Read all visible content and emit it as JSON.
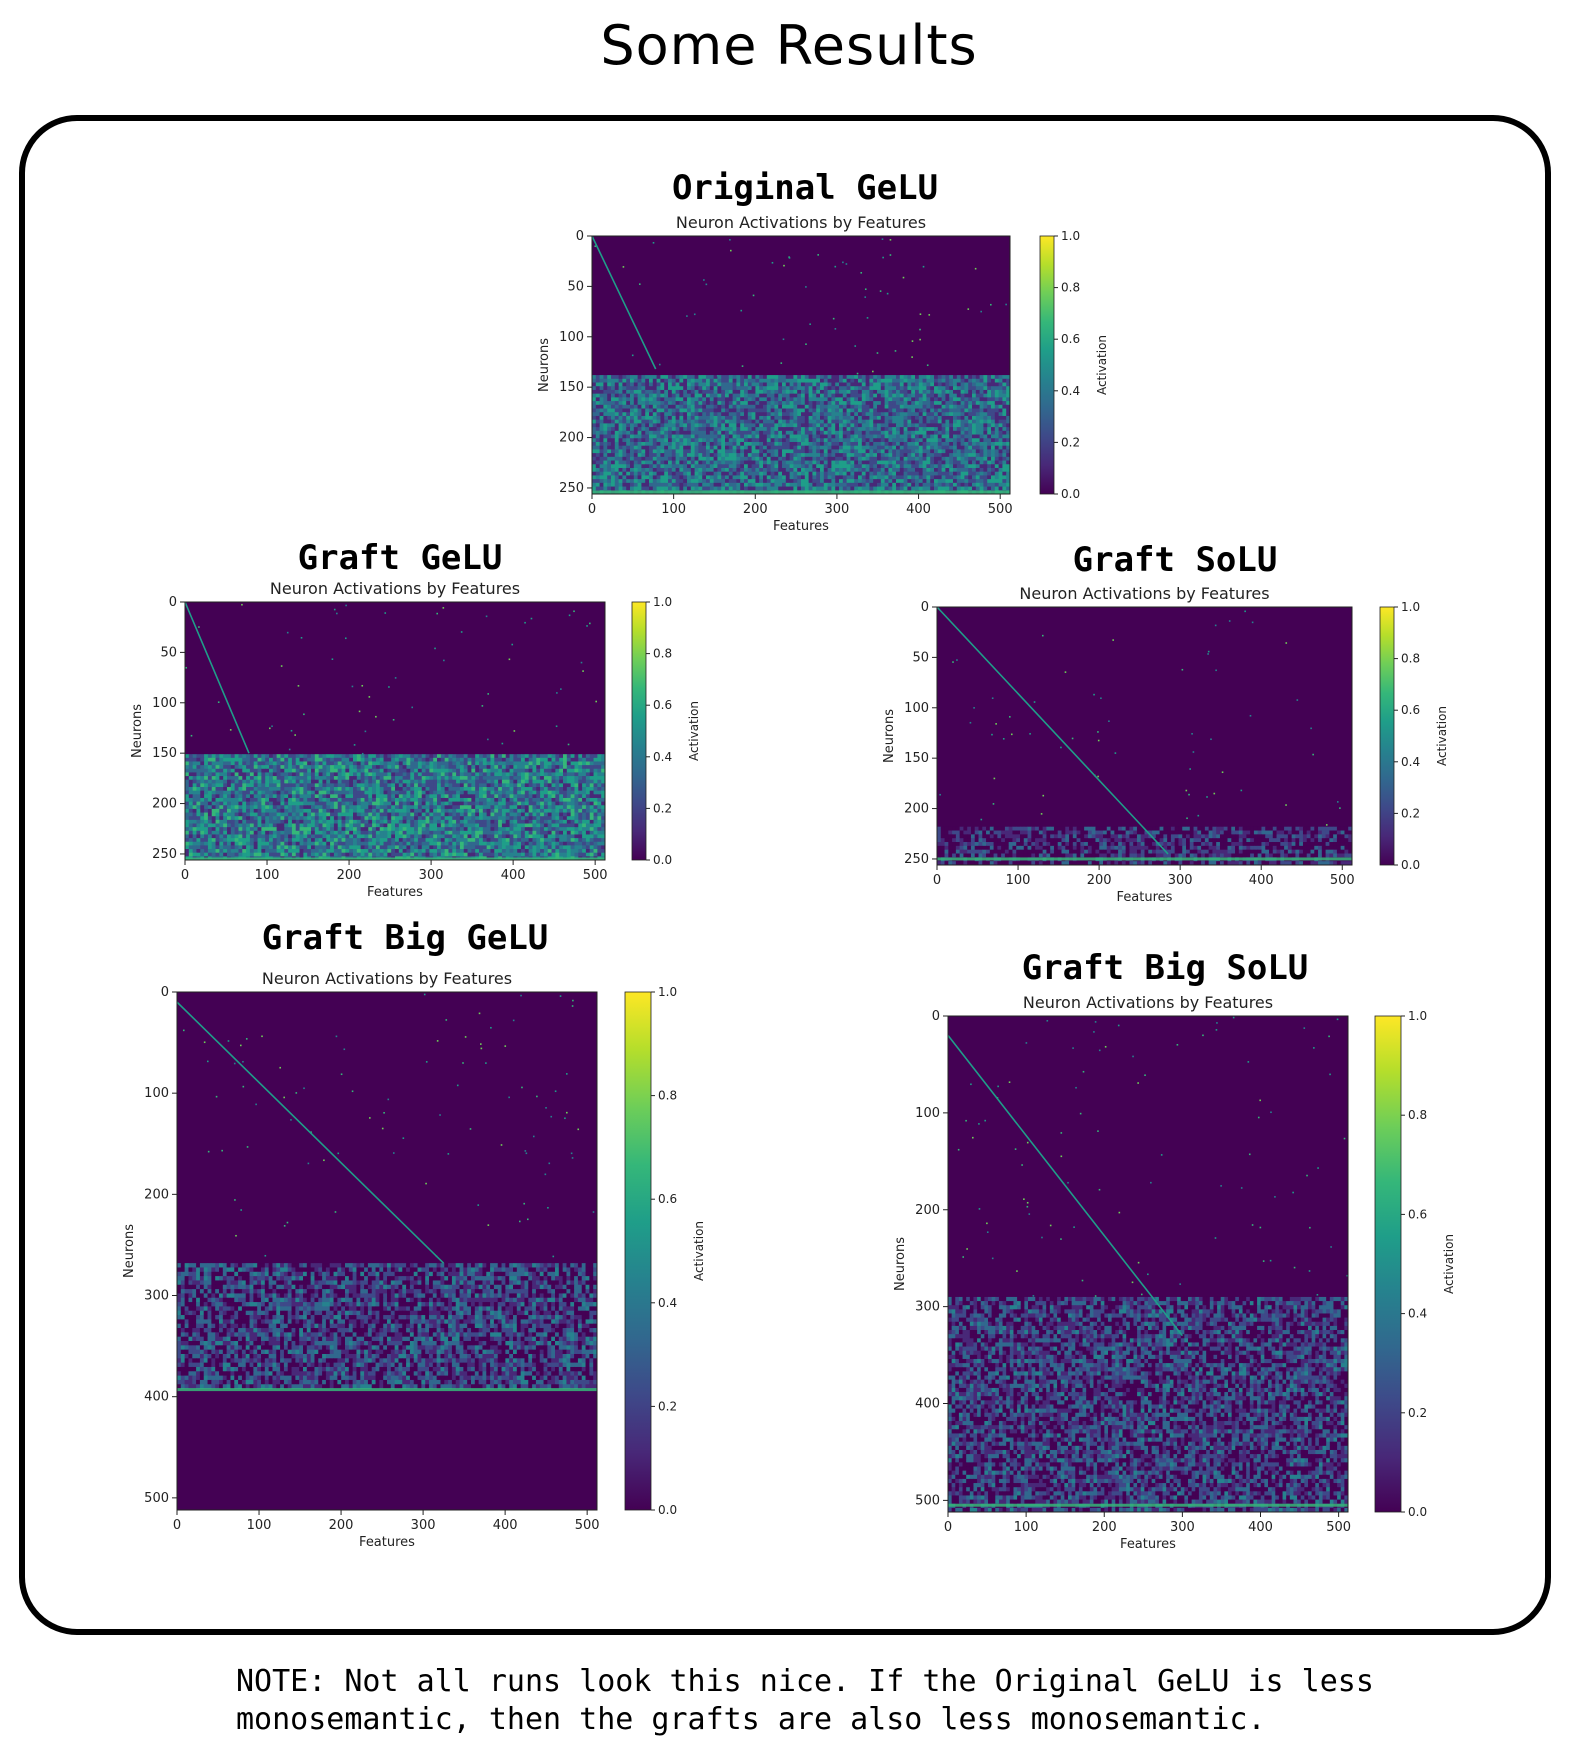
{
  "page": {
    "title": "Some Results",
    "note_line1": "NOTE: Not all runs look this nice. If the Original GeLU is less",
    "note_line2": "monosemantic, then the grafts are also less monosemantic."
  },
  "colors": {
    "viridis": [
      "#440154",
      "#482878",
      "#3e4989",
      "#31688e",
      "#26828e",
      "#1f9e89",
      "#35b779",
      "#6ece58",
      "#b5de2b",
      "#fde725"
    ]
  },
  "chart_data": [
    {
      "panel_title": "Original GeLU",
      "type": "heatmap",
      "title": "Neuron Activations by Features",
      "xlabel": "Features",
      "ylabel": "Neurons",
      "colorbar_label": "Activation",
      "xlim": [
        0,
        512
      ],
      "ylim": [
        256,
        0
      ],
      "xticks": [
        0,
        100,
        200,
        300,
        400,
        500
      ],
      "yticks": [
        0,
        50,
        100,
        150,
        200,
        250
      ],
      "colorbar_ticks": [
        "0.0",
        "0.2",
        "0.4",
        "0.6",
        "0.8",
        "1.0"
      ],
      "diagonal": {
        "from": [
          0,
          0
        ],
        "to": [
          78,
          132
        ]
      },
      "noise_band": {
        "y_start": 138,
        "y_end": 256,
        "mean_activation": 0.35
      },
      "bright_row": 254
    },
    {
      "panel_title": "Graft GeLU",
      "type": "heatmap",
      "title": "Neuron Activations by Features",
      "xlabel": "Features",
      "ylabel": "Neurons",
      "colorbar_label": "Activation",
      "xlim": [
        0,
        512
      ],
      "ylim": [
        256,
        0
      ],
      "xticks": [
        0,
        100,
        200,
        300,
        400,
        500
      ],
      "yticks": [
        0,
        50,
        100,
        150,
        200,
        250
      ],
      "colorbar_ticks": [
        "0.0",
        "0.2",
        "0.4",
        "0.6",
        "0.8",
        "1.0"
      ],
      "diagonal": {
        "from": [
          0,
          0
        ],
        "to": [
          78,
          150
        ]
      },
      "noise_band": {
        "y_start": 151,
        "y_end": 256,
        "mean_activation": 0.4
      },
      "bright_row": 255
    },
    {
      "panel_title": "Graft SoLU",
      "type": "heatmap",
      "title": "Neuron Activations by Features",
      "xlabel": "Features",
      "ylabel": "Neurons",
      "colorbar_label": "Activation",
      "xlim": [
        0,
        512
      ],
      "ylim": [
        256,
        0
      ],
      "xticks": [
        0,
        100,
        200,
        300,
        400,
        500
      ],
      "yticks": [
        0,
        50,
        100,
        150,
        200,
        250
      ],
      "colorbar_ticks": [
        "0.0",
        "0.2",
        "0.4",
        "0.6",
        "0.8",
        "1.0"
      ],
      "diagonal": {
        "from": [
          0,
          0
        ],
        "to": [
          285,
          245
        ]
      },
      "noise_band": {
        "y_start": 218,
        "y_end": 256,
        "mean_activation": 0.12
      },
      "bright_row": 250
    },
    {
      "panel_title": "Graft Big GeLU",
      "type": "heatmap",
      "title": "Neuron Activations by Features",
      "xlabel": "Features",
      "ylabel": "Neurons",
      "colorbar_label": "Activation",
      "xlim": [
        0,
        512
      ],
      "ylim": [
        512,
        0
      ],
      "xticks": [
        0,
        100,
        200,
        300,
        400,
        500
      ],
      "yticks": [
        0,
        100,
        200,
        300,
        400,
        500
      ],
      "colorbar_ticks": [
        "0.0",
        "0.2",
        "0.4",
        "0.6",
        "0.8",
        "1.0"
      ],
      "diagonal": {
        "from": [
          0,
          10
        ],
        "to": [
          325,
          268
        ]
      },
      "noise_band": {
        "y_start": 268,
        "y_end": 392,
        "mean_activation": 0.2
      },
      "bright_row": 393
    },
    {
      "panel_title": "Graft Big SoLU",
      "type": "heatmap",
      "title": "Neuron Activations by Features",
      "xlabel": "Features",
      "ylabel": "Neurons",
      "colorbar_label": "Activation",
      "xlim": [
        0,
        512
      ],
      "ylim": [
        512,
        0
      ],
      "xticks": [
        0,
        100,
        200,
        300,
        400,
        500
      ],
      "yticks": [
        0,
        100,
        200,
        300,
        400,
        500
      ],
      "colorbar_ticks": [
        "0.0",
        "0.2",
        "0.4",
        "0.6",
        "0.8",
        "1.0"
      ],
      "diagonal": {
        "from": [
          0,
          20
        ],
        "to": [
          300,
          330
        ]
      },
      "noise_band": {
        "y_start": 290,
        "y_end": 512,
        "mean_activation": 0.18
      },
      "bright_row": 505
    }
  ]
}
